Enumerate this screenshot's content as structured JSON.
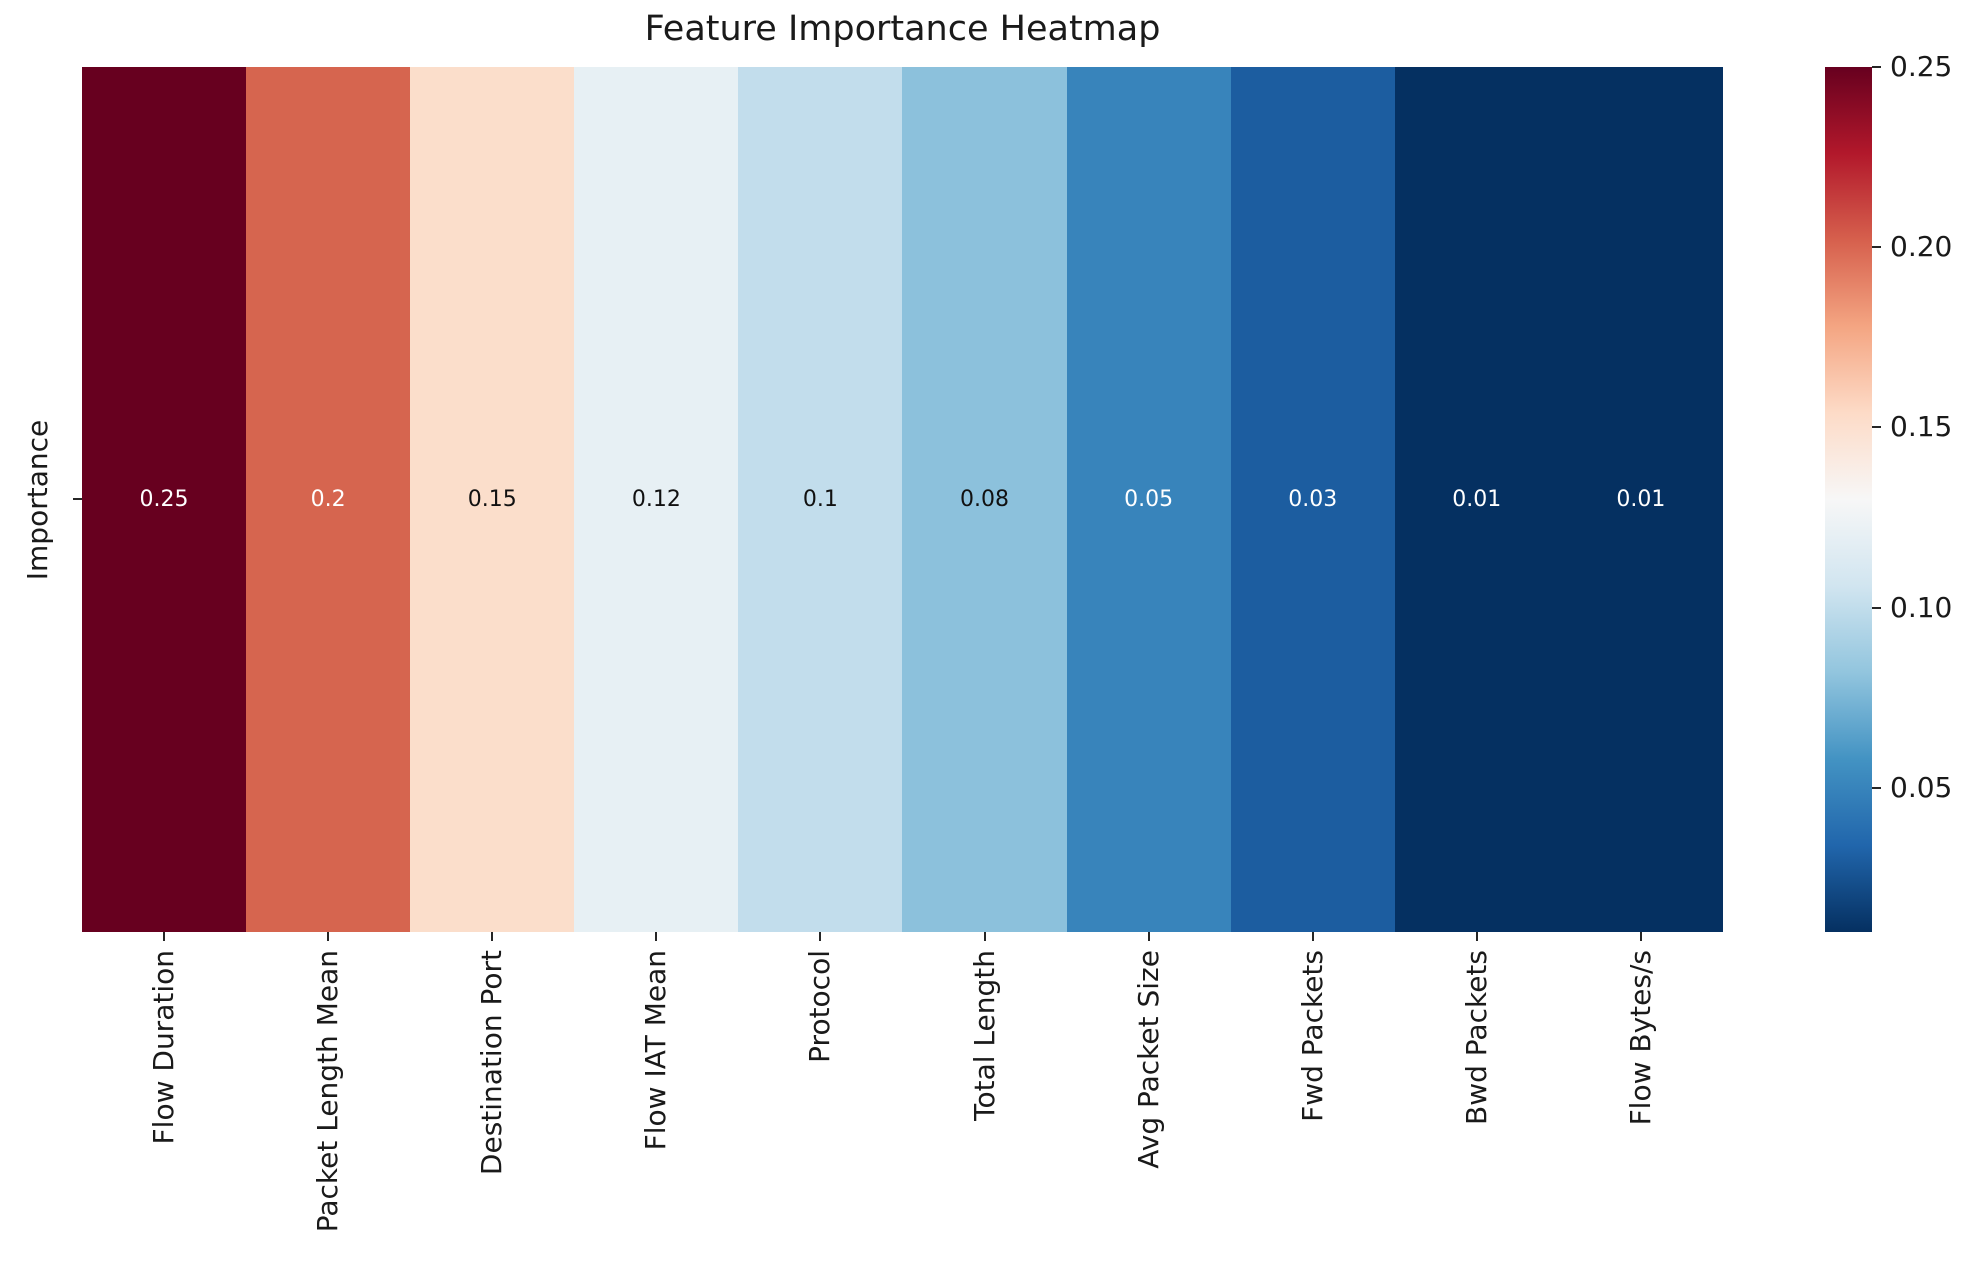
{
  "chart_data": {
    "type": "heatmap",
    "title": "Feature Importance Heatmap",
    "ylabel": "Importance",
    "xlabel": "",
    "row_labels": [
      "Importance"
    ],
    "categories": [
      "Flow Duration",
      "Packet Length Mean",
      "Destination Port",
      "Flow IAT Mean",
      "Protocol",
      "Total Length",
      "Avg Packet Size",
      "Fwd Packets",
      "Bwd Packets",
      "Flow Bytes/s"
    ],
    "values": [
      0.25,
      0.2,
      0.15,
      0.12,
      0.1,
      0.08,
      0.05,
      0.03,
      0.01,
      0.01
    ],
    "cell_labels": [
      "0.25",
      "0.2",
      "0.15",
      "0.12",
      "0.1",
      "0.08",
      "0.05",
      "0.03",
      "0.01",
      "0.01"
    ],
    "cell_colors": [
      "#67001f",
      "#d6654f",
      "#fbdecb",
      "#e7f0f4",
      "#c2ddec",
      "#8cc1dc",
      "#3884bb",
      "#1c5da0",
      "#053061",
      "#053061"
    ],
    "cell_text_colors": [
      "#ffffff",
      "#ffffff",
      "#111111",
      "#111111",
      "#111111",
      "#111111",
      "#ffffff",
      "#ffffff",
      "#ffffff",
      "#ffffff"
    ],
    "colormap": "RdBu_r",
    "vmin": 0.01,
    "vmax": 0.25,
    "grid": false,
    "legend_position": "colorbar-right",
    "colorbar": {
      "tick_labels": [
        "0.25",
        "0.20",
        "0.15",
        "0.10",
        "0.05"
      ],
      "tick_values": [
        0.25,
        0.2,
        0.15,
        0.1,
        0.05
      ],
      "gradient_stops": [
        "#67001f",
        "#b2182b",
        "#d6604d",
        "#f4a582",
        "#fddbc7",
        "#f7f7f7",
        "#d1e5f0",
        "#92c5de",
        "#4393c3",
        "#2166ac",
        "#053061"
      ]
    }
  },
  "style": {
    "axis_text_color": "#1a1a1a",
    "tick_color": "#262626",
    "background": "#ffffff"
  }
}
